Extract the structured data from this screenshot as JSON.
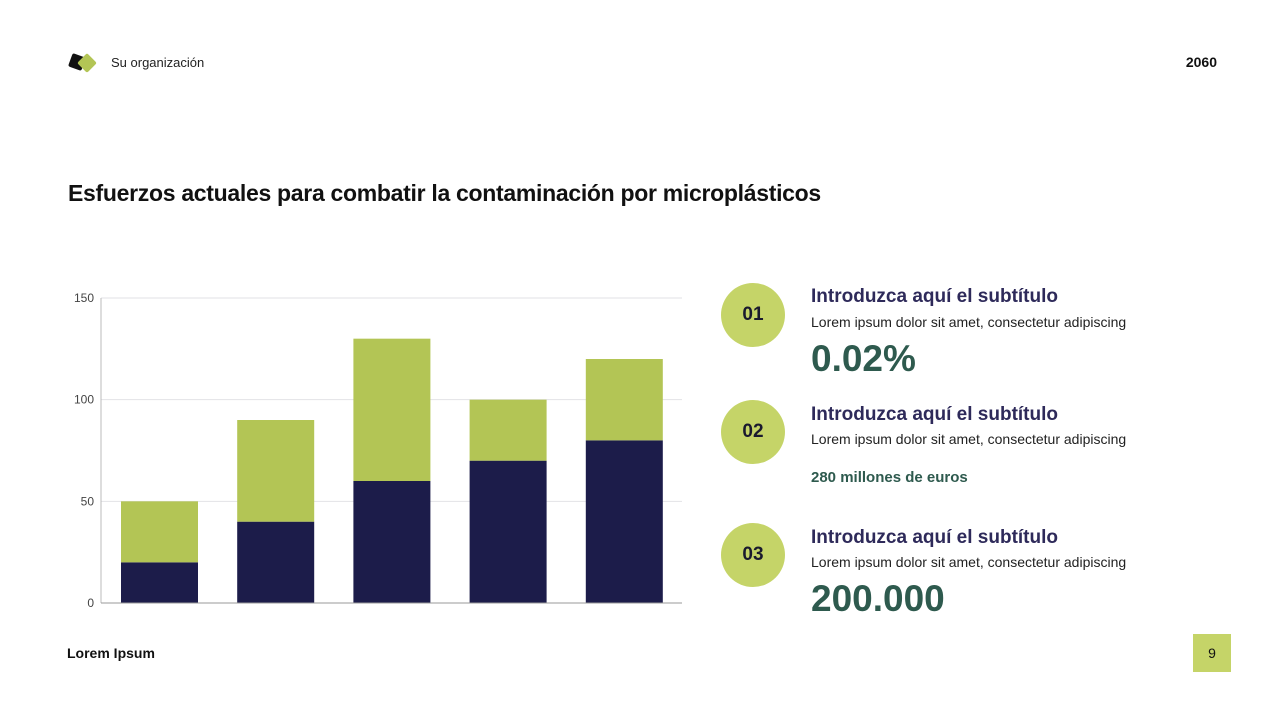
{
  "header": {
    "organization": "Su organización",
    "year": "2060"
  },
  "title": "Esfuerzos actuales para combatir la contaminación por microplásticos",
  "items": [
    {
      "number": "01",
      "subtitle": "Introduzca aquí el subtítulo",
      "description": "Lorem ipsum dolor sit amet, consectetur adipiscing",
      "value": "0.02%"
    },
    {
      "number": "02",
      "subtitle": "Introduzca aquí el subtítulo",
      "description": "Lorem ipsum dolor sit amet, consectetur adipiscing",
      "value": "280 millones de euros"
    },
    {
      "number": "03",
      "subtitle": "Introduzca aquí el subtítulo",
      "description": "Lorem ipsum dolor sit amet, consectetur adipiscing",
      "value": "200.000"
    }
  ],
  "footer": {
    "text": "Lorem Ipsum",
    "page": "9"
  },
  "colors": {
    "accent": "#c5d468",
    "dark": "#1c1c4a",
    "green": "#b3c555"
  },
  "chart_data": {
    "type": "bar",
    "stacked": true,
    "categories": [
      "",
      "",
      "",
      "",
      ""
    ],
    "series": [
      {
        "values": [
          20,
          40,
          60,
          70,
          80
        ],
        "color": "#1c1c4a"
      },
      {
        "values": [
          30,
          50,
          70,
          30,
          40
        ],
        "color": "#b3c555"
      }
    ],
    "ylim": [
      0,
      150
    ],
    "yticks": [
      "0",
      "50",
      "100",
      "150"
    ],
    "grid": true
  }
}
